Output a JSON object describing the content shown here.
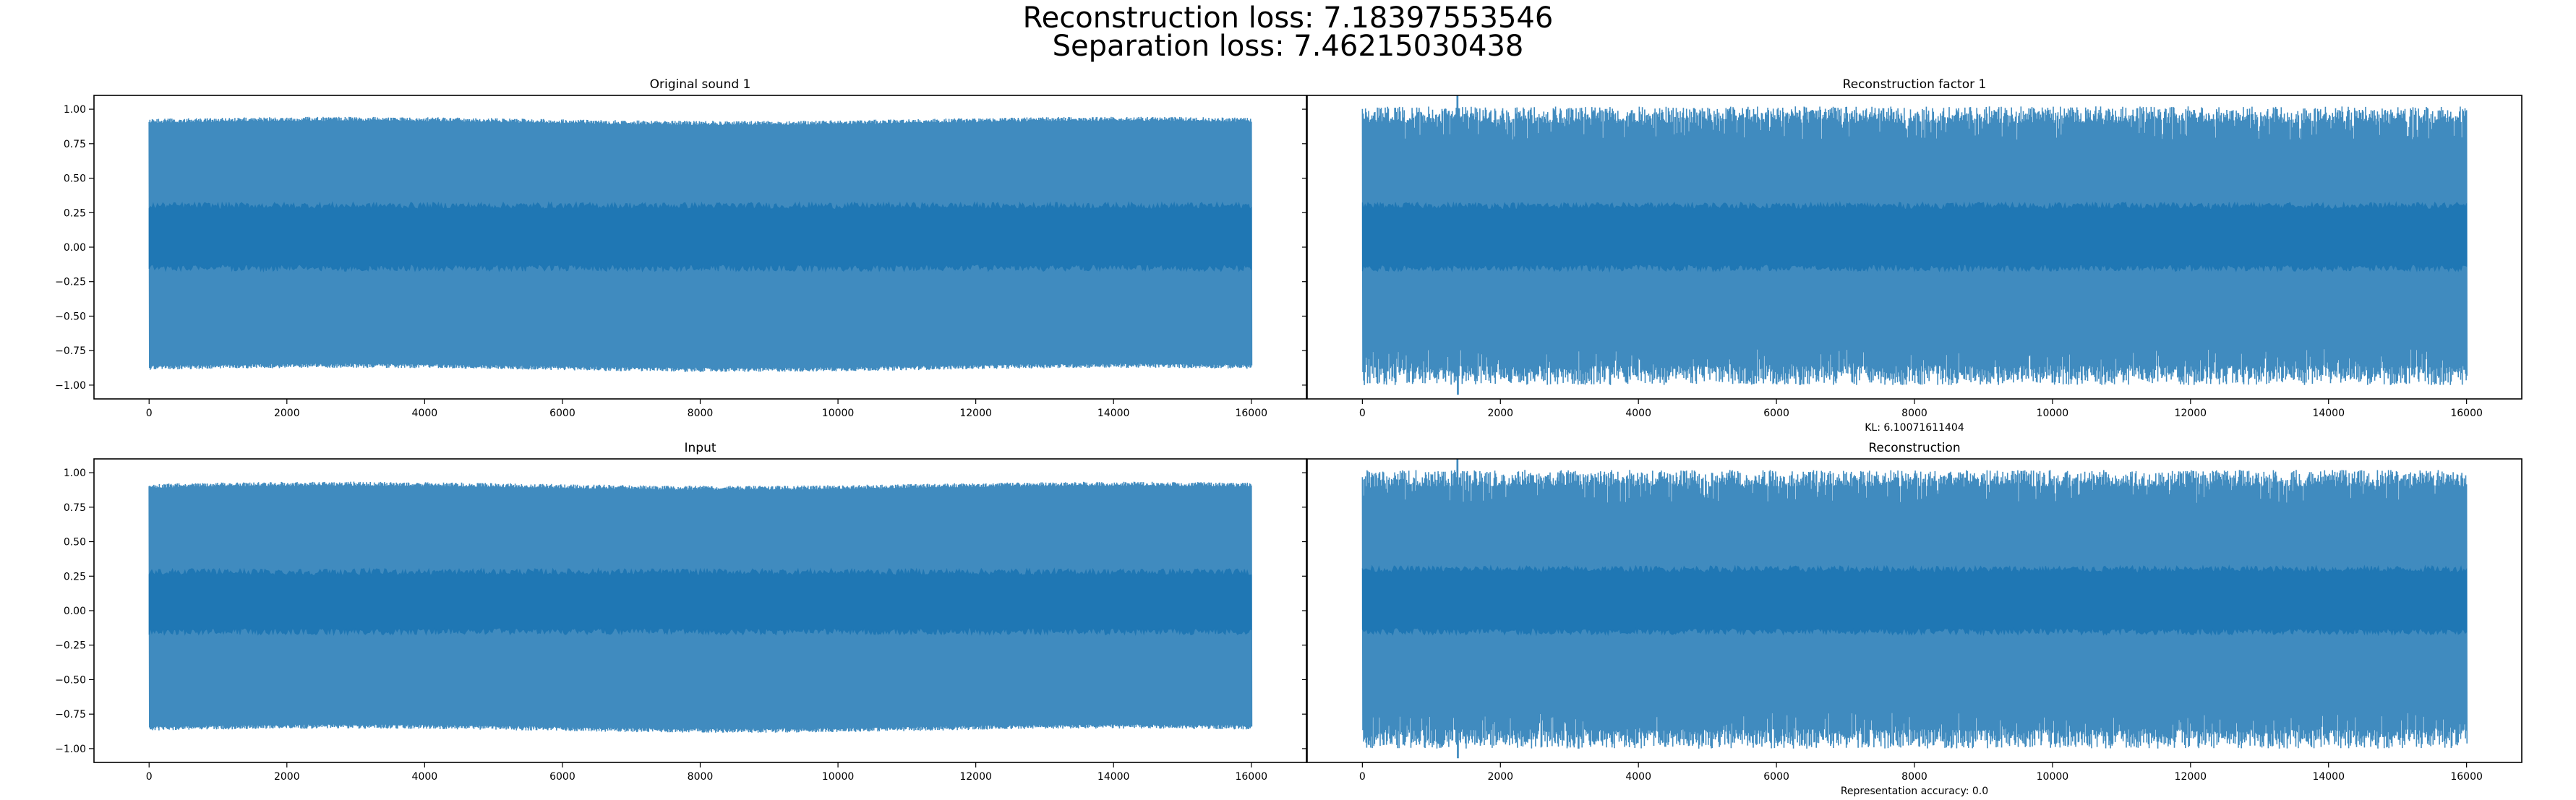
{
  "figure": {
    "suptitle_line1": "Reconstruction loss: 7.18397553546",
    "suptitle_line2": "Separation loss: 7.46215030438",
    "line_color": "#1f77b4"
  },
  "chart_data": [
    {
      "type": "line",
      "title": "Original sound 1",
      "xlabel": "",
      "ylabel": "",
      "xlim": [
        -800,
        16800
      ],
      "ylim": [
        -1.1,
        1.1
      ],
      "xticks": [
        0,
        2000,
        4000,
        6000,
        8000,
        10000,
        12000,
        14000,
        16000
      ],
      "xtick_labels": [
        "0",
        "2000",
        "4000",
        "6000",
        "8000",
        "10000",
        "12000",
        "14000",
        "16000"
      ],
      "yticks": [
        -1.0,
        -0.75,
        -0.5,
        -0.25,
        0.0,
        0.25,
        0.5,
        0.75,
        1.0
      ],
      "ytick_labels": [
        "−1.00",
        "−0.75",
        "−0.50",
        "−0.25",
        "0.00",
        "0.25",
        "0.50",
        "0.75",
        "1.00"
      ],
      "grid": false,
      "series": [
        {
          "x_range": [
            0,
            16000
          ],
          "n_samples": 16000,
          "envelope_max": 0.96,
          "envelope_min": -0.92,
          "dense_band": [
            -0.15,
            0.3
          ]
        }
      ]
    },
    {
      "type": "line",
      "title": "Reconstruction factor 1",
      "xlabel": "KL: 6.10071611404",
      "ylabel": "",
      "xlim": [
        -800,
        16800
      ],
      "ylim": [
        -1.1,
        1.1
      ],
      "xticks": [
        0,
        2000,
        4000,
        6000,
        8000,
        10000,
        12000,
        14000,
        16000
      ],
      "xtick_labels": [
        "0",
        "2000",
        "4000",
        "6000",
        "8000",
        "10000",
        "12000",
        "14000",
        "16000"
      ],
      "yticks": [
        -1.0,
        -0.75,
        -0.5,
        -0.25,
        0.0,
        0.25,
        0.5,
        0.75,
        1.0
      ],
      "grid": false,
      "series": [
        {
          "x_range": [
            0,
            16000
          ],
          "n_samples": 16000,
          "envelope_max": 1.1,
          "envelope_min": -1.07,
          "dense_band": [
            -0.15,
            0.3
          ]
        }
      ]
    },
    {
      "type": "line",
      "title": "Input",
      "xlabel": "",
      "ylabel": "",
      "xlim": [
        -800,
        16800
      ],
      "ylim": [
        -1.1,
        1.1
      ],
      "xticks": [
        0,
        2000,
        4000,
        6000,
        8000,
        10000,
        12000,
        14000,
        16000
      ],
      "xtick_labels": [
        "0",
        "2000",
        "4000",
        "6000",
        "8000",
        "10000",
        "12000",
        "14000",
        "16000"
      ],
      "yticks": [
        -1.0,
        -0.75,
        -0.5,
        -0.25,
        0.0,
        0.25,
        0.5,
        0.75,
        1.0
      ],
      "ytick_labels": [
        "−1.00",
        "−0.75",
        "−0.50",
        "−0.25",
        "0.00",
        "0.25",
        "0.50",
        "0.75",
        "1.00"
      ],
      "grid": false,
      "series": [
        {
          "x_range": [
            0,
            16000
          ],
          "n_samples": 16000,
          "envelope_max": 0.95,
          "envelope_min": -0.9,
          "dense_band": [
            -0.15,
            0.28
          ]
        }
      ]
    },
    {
      "type": "line",
      "title": "Reconstruction",
      "xlabel": "Representation accuracy: 0.0",
      "ylabel": "",
      "xlim": [
        -800,
        16800
      ],
      "ylim": [
        -1.1,
        1.1
      ],
      "xticks": [
        0,
        2000,
        4000,
        6000,
        8000,
        10000,
        12000,
        14000,
        16000
      ],
      "xtick_labels": [
        "0",
        "2000",
        "4000",
        "6000",
        "8000",
        "10000",
        "12000",
        "14000",
        "16000"
      ],
      "yticks": [
        -1.0,
        -0.75,
        -0.5,
        -0.25,
        0.0,
        0.25,
        0.5,
        0.75,
        1.0
      ],
      "grid": false,
      "series": [
        {
          "x_range": [
            0,
            16000
          ],
          "n_samples": 16000,
          "envelope_max": 1.1,
          "envelope_min": -1.07,
          "dense_band": [
            -0.15,
            0.3
          ]
        }
      ]
    }
  ]
}
